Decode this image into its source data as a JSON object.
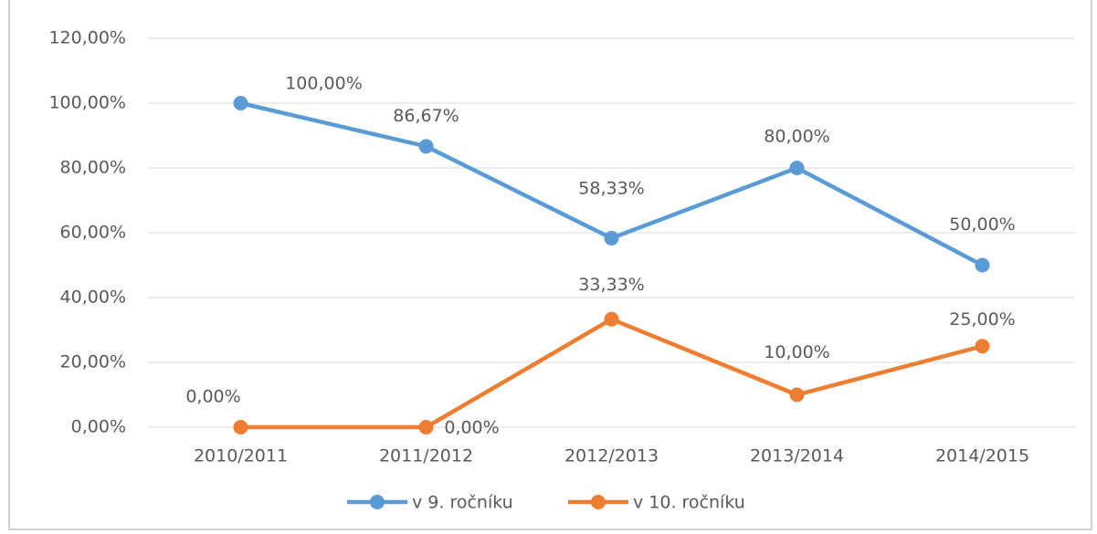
{
  "chart_data": {
    "type": "line",
    "categories": [
      "2010/2011",
      "2011/2012",
      "2012/2013",
      "2013/2014",
      "2014/2015"
    ],
    "series": [
      {
        "name": "v 9. ročníku",
        "color": "#5b9bd5",
        "values": [
          100,
          86.67,
          58.33,
          80,
          50
        ],
        "value_labels": [
          "100,00%",
          "86,67%",
          "58,33%",
          "80,00%",
          "50,00%"
        ]
      },
      {
        "name": "v 10. ročníku",
        "color": "#ed7d31",
        "values": [
          0,
          0,
          33.33,
          10,
          25
        ],
        "value_labels": [
          "0,00%",
          "0,00%",
          "33,33%",
          "10,00%",
          "25,00%"
        ]
      }
    ],
    "ylim": [
      0,
      120
    ],
    "yticks": [
      {
        "value": 0,
        "label": "0,00%"
      },
      {
        "value": 20,
        "label": "20,00%"
      },
      {
        "value": 40,
        "label": "40,00%"
      },
      {
        "value": 60,
        "label": "60,00%"
      },
      {
        "value": 80,
        "label": "80,00%"
      },
      {
        "value": 100,
        "label": "100,00%"
      },
      {
        "value": 120,
        "label": "120,00%"
      }
    ],
    "grid": true,
    "legend": "bottom"
  }
}
